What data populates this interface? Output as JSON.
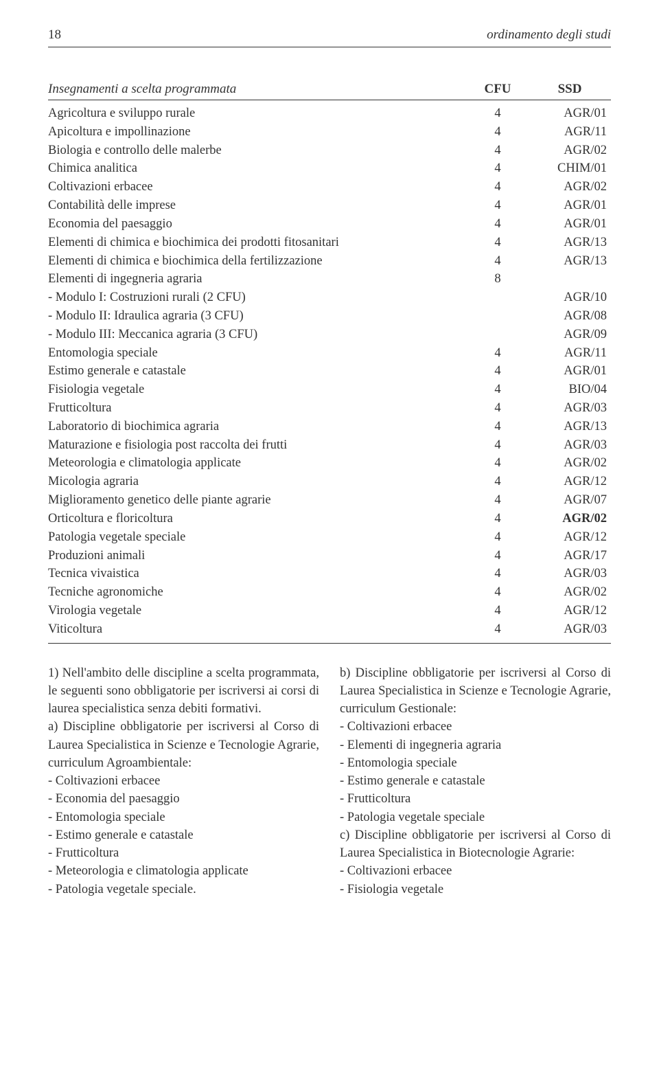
{
  "page_number": "18",
  "header_title": "ordinamento degli studi",
  "table": {
    "header": {
      "col1": "Insegnamenti a scelta programmata",
      "col2": "CFU",
      "col3": "SSD"
    },
    "rows": [
      {
        "name": "Agricoltura e sviluppo rurale",
        "cfu": "4",
        "ssd": "AGR/01"
      },
      {
        "name": "Apicoltura e impollinazione",
        "cfu": "4",
        "ssd": "AGR/11"
      },
      {
        "name": "Biologia e controllo delle malerbe",
        "cfu": "4",
        "ssd": "AGR/02"
      },
      {
        "name": "Chimica analitica",
        "cfu": "4",
        "ssd": "CHIM/01"
      },
      {
        "name": "Coltivazioni erbacee",
        "cfu": "4",
        "ssd": "AGR/02"
      },
      {
        "name": "Contabilità delle imprese",
        "cfu": "4",
        "ssd": "AGR/01"
      },
      {
        "name": "Economia del paesaggio",
        "cfu": "4",
        "ssd": "AGR/01"
      },
      {
        "name": "Elementi di chimica e biochimica dei prodotti fitosanitari",
        "cfu": "4",
        "ssd": "AGR/13"
      },
      {
        "name": "Elementi di chimica e biochimica della fertilizzazione",
        "cfu": "4",
        "ssd": "AGR/13"
      },
      {
        "name": "Elementi di ingegneria agraria",
        "cfu": "8",
        "ssd": ""
      },
      {
        "name": "- Modulo I: Costruzioni rurali (2 CFU)",
        "cfu": "",
        "ssd": "AGR/10"
      },
      {
        "name": "- Modulo II: Idraulica agraria (3 CFU)",
        "cfu": "",
        "ssd": "AGR/08"
      },
      {
        "name": "- Modulo III: Meccanica agraria (3 CFU)",
        "cfu": "",
        "ssd": "AGR/09"
      },
      {
        "name": "Entomologia speciale",
        "cfu": "4",
        "ssd": "AGR/11"
      },
      {
        "name": "Estimo generale e catastale",
        "cfu": "4",
        "ssd": "AGR/01"
      },
      {
        "name": "Fisiologia vegetale",
        "cfu": "4",
        "ssd": "BIO/04"
      },
      {
        "name": "Frutticoltura",
        "cfu": "4",
        "ssd": "AGR/03"
      },
      {
        "name": "Laboratorio di biochimica agraria",
        "cfu": "4",
        "ssd": "AGR/13"
      },
      {
        "name": "Maturazione e fisiologia post raccolta dei frutti",
        "cfu": "4",
        "ssd": "AGR/03"
      },
      {
        "name": "Meteorologia e climatologia applicate",
        "cfu": "4",
        "ssd": "AGR/02"
      },
      {
        "name": "Micologia agraria",
        "cfu": "4",
        "ssd": "AGR/12"
      },
      {
        "name": "Miglioramento genetico delle piante agrarie",
        "cfu": "4",
        "ssd": "AGR/07"
      },
      {
        "name": "Orticoltura e floricoltura",
        "cfu": "4",
        "ssd": "AGR/02",
        "bold": true
      },
      {
        "name": "Patologia vegetale speciale",
        "cfu": "4",
        "ssd": "AGR/12"
      },
      {
        "name": "Produzioni animali",
        "cfu": "4",
        "ssd": "AGR/17"
      },
      {
        "name": "Tecnica vivaistica",
        "cfu": "4",
        "ssd": "AGR/03"
      },
      {
        "name": "Tecniche agronomiche",
        "cfu": "4",
        "ssd": "AGR/02"
      },
      {
        "name": "Virologia vegetale",
        "cfu": "4",
        "ssd": "AGR/12"
      },
      {
        "name": "Viticoltura",
        "cfu": "4",
        "ssd": "AGR/03"
      }
    ]
  },
  "left_col": [
    "1) Nell'ambito delle discipline a scelta programmata, le seguenti sono obbligatorie per iscriversi ai corsi di laurea specialistica senza debiti formativi.",
    "a) Discipline obbligatorie per iscriversi al Corso di Laurea Specialistica in Scienze e Tecnologie Agrarie, curriculum Agroambientale:",
    "- Coltivazioni erbacee",
    "- Economia del paesaggio",
    "- Entomologia speciale",
    "- Estimo generale e catastale",
    "- Frutticoltura",
    "- Meteorologia e climatologia applicate",
    "- Patologia vegetale speciale."
  ],
  "right_col": [
    "b) Discipline obbligatorie per iscriversi al Corso di Laurea Specialistica in Scienze e Tecnologie Agrarie, curriculum Gestionale:",
    "- Coltivazioni erbacee",
    "- Elementi di ingegneria agraria",
    "- Entomologia speciale",
    "- Estimo generale e catastale",
    "- Frutticoltura",
    "- Patologia vegetale speciale",
    "c) Discipline obbligatorie per iscriversi al Corso di Laurea Specialistica in Biotecnologie Agrarie:",
    "- Coltivazioni erbacee",
    "- Fisiologia vegetale"
  ]
}
